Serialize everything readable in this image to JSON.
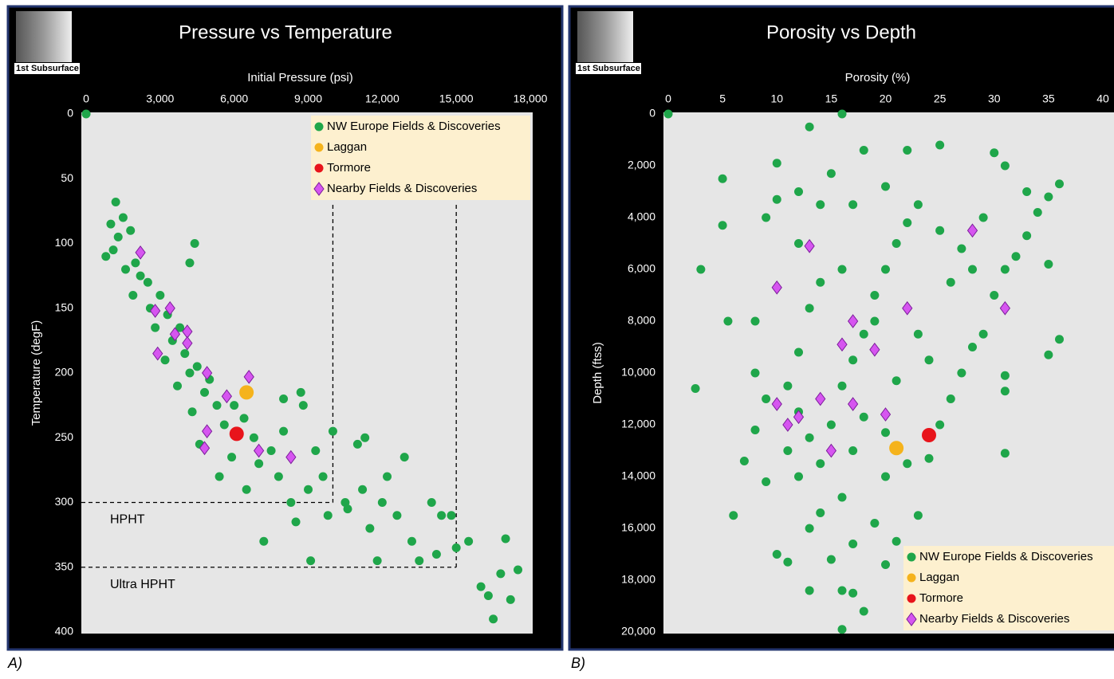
{
  "chart_data": [
    {
      "type": "scatter",
      "title": "Pressure vs Temperature",
      "logo": "1st Subsurface",
      "caption": "A)",
      "xlabel": "Initial Pressure (psi)",
      "ylabel": "Temperature (degF)",
      "xlim": [
        0,
        18000
      ],
      "ylim": [
        0,
        400
      ],
      "xticks": [
        0,
        {
          "value": 3000,
          "label": "3,000"
        },
        {
          "value": 6000,
          "label": "6,000"
        },
        {
          "value": 9000,
          "label": "9,000"
        },
        {
          "value": 12000,
          "label": "12,000"
        },
        {
          "value": 15000,
          "label": "15,000"
        },
        {
          "value": 18000,
          "label": "18,000"
        }
      ],
      "yticks": [
        0,
        50,
        100,
        150,
        200,
        250,
        300,
        350,
        400
      ],
      "legend": "upper right",
      "reference_lines": [
        {
          "label": "HPHT",
          "y": 300,
          "x": 10000
        },
        {
          "label": "Ultra HPHT",
          "y": 350,
          "x": 15000
        }
      ],
      "series": [
        {
          "name": "NW Europe Fields & Discoveries",
          "color": "#1fa64a",
          "marker": "circle",
          "x": [
            0,
            1200,
            1500,
            1000,
            1300,
            1800,
            800,
            1100,
            1600,
            2000,
            2200,
            2500,
            1900,
            2600,
            3000,
            3300,
            2800,
            3500,
            3800,
            4000,
            3200,
            4200,
            4500,
            3700,
            4800,
            5000,
            4300,
            5300,
            5600,
            4600,
            6000,
            6400,
            6800,
            5900,
            7000,
            5400,
            6500,
            7500,
            8000,
            7800,
            8300,
            8700,
            8800,
            8500,
            9000,
            9300,
            9600,
            9800,
            10000,
            10500,
            11000,
            11300,
            11200,
            11500,
            11800,
            12200,
            12600,
            12900,
            13200,
            13500,
            14000,
            14200,
            14400,
            14800,
            15000,
            15500,
            16000,
            16300,
            16500,
            16800,
            17000,
            17200,
            17500,
            7200,
            8000,
            4400,
            4200,
            10600,
            12000,
            9100
          ],
          "values": [
            0,
            68,
            80,
            85,
            95,
            90,
            110,
            105,
            120,
            115,
            125,
            130,
            140,
            150,
            140,
            155,
            165,
            175,
            165,
            185,
            190,
            200,
            195,
            210,
            215,
            205,
            230,
            225,
            240,
            255,
            225,
            235,
            250,
            265,
            270,
            280,
            290,
            260,
            245,
            280,
            300,
            215,
            225,
            315,
            290,
            260,
            280,
            310,
            245,
            300,
            255,
            250,
            290,
            320,
            345,
            280,
            310,
            265,
            330,
            345,
            300,
            340,
            310,
            310,
            335,
            330,
            365,
            372,
            390,
            355,
            328,
            375,
            352,
            330,
            220,
            100,
            115,
            305,
            300,
            345
          ]
        },
        {
          "name": "Laggan",
          "color": "#f5b31c",
          "marker": "big-circle",
          "x": [
            6500
          ],
          "values": [
            215
          ]
        },
        {
          "name": "Tormore",
          "color": "#e8141b",
          "marker": "big-circle",
          "x": [
            6100
          ],
          "values": [
            247
          ]
        },
        {
          "name": "Nearby Fields & Discoveries",
          "color": "#d655f0",
          "marker": "diamond",
          "x": [
            2200,
            2800,
            3400,
            3600,
            4100,
            4100,
            2900,
            4900,
            6600,
            5700,
            4900,
            4800,
            7000,
            8300
          ],
          "values": [
            107,
            152,
            150,
            170,
            168,
            177,
            185,
            200,
            203,
            218,
            245,
            258,
            260,
            265
          ]
        }
      ]
    },
    {
      "type": "scatter",
      "title": "Porosity vs Depth",
      "logo": "1st Subsurface",
      "caption": "B)",
      "xlabel": "Porosity (%)",
      "ylabel": "Depth (ftss)",
      "xlim": [
        0,
        40
      ],
      "ylim": [
        0,
        20000
      ],
      "xticks": [
        0,
        5,
        10,
        15,
        20,
        25,
        30,
        35,
        40
      ],
      "yticks": [
        0,
        {
          "value": 2000,
          "label": "2,000"
        },
        {
          "value": 4000,
          "label": "4,000"
        },
        {
          "value": 6000,
          "label": "6,000"
        },
        {
          "value": 8000,
          "label": "8,000"
        },
        {
          "value": 10000,
          "label": "10,000"
        },
        {
          "value": 12000,
          "label": "12,000"
        },
        {
          "value": 14000,
          "label": "14,000"
        },
        {
          "value": 16000,
          "label": "16,000"
        },
        {
          "value": 18000,
          "label": "18,000"
        },
        {
          "value": 20000,
          "label": "20,000"
        }
      ],
      "legend": "lower right",
      "series": [
        {
          "name": "NW Europe Fields & Discoveries",
          "color": "#1fa64a",
          "marker": "circle",
          "x": [
            0,
            16,
            13,
            5,
            5,
            3,
            5.5,
            2.5,
            8,
            10,
            10,
            9,
            12,
            12,
            8,
            9,
            8,
            7,
            9,
            6,
            10,
            11,
            13,
            16,
            17,
            18,
            16,
            15,
            17,
            19,
            20,
            21,
            23,
            20,
            22,
            24,
            25,
            26,
            27,
            28,
            29,
            30,
            31,
            32,
            33,
            34,
            35,
            36,
            30,
            25,
            22,
            18,
            15,
            14,
            14,
            13,
            12,
            11,
            12,
            13,
            11,
            12,
            14,
            15,
            16,
            17,
            18,
            19,
            20,
            21,
            22,
            23,
            25,
            26,
            27,
            28,
            29,
            31,
            33,
            35,
            36,
            35,
            31,
            31,
            31,
            24,
            23,
            21,
            20,
            18,
            17,
            16,
            14,
            13,
            19,
            16,
            17,
            20
          ],
          "values": [
            0,
            0,
            500,
            2500,
            4300,
            6000,
            8000,
            10600,
            8000,
            1900,
            3300,
            4000,
            3000,
            5000,
            10000,
            11000,
            12200,
            13400,
            14200,
            15500,
            17000,
            17300,
            18400,
            18400,
            18500,
            19200,
            19900,
            17200,
            16600,
            15800,
            17400,
            16500,
            15500,
            14000,
            13500,
            13300,
            12000,
            11000,
            10000,
            9000,
            8500,
            7000,
            6000,
            5500,
            4700,
            3800,
            3200,
            2700,
            1500,
            1200,
            1400,
            1400,
            2300,
            3500,
            6500,
            7500,
            9200,
            10500,
            11500,
            12500,
            13000,
            14000,
            13500,
            12000,
            10500,
            9500,
            8500,
            7000,
            6000,
            5000,
            4200,
            3500,
            4500,
            6500,
            5200,
            6000,
            4000,
            2000,
            3000,
            5800,
            8700,
            9300,
            10100,
            10700,
            13100,
            9500,
            8500,
            10300,
            12300,
            11700,
            13000,
            14800,
            15400,
            16000,
            8000,
            6000,
            3500,
            2800
          ]
        },
        {
          "name": "Laggan",
          "color": "#f5b31c",
          "marker": "big-circle",
          "x": [
            21
          ],
          "values": [
            12900
          ]
        },
        {
          "name": "Tormore",
          "color": "#e8141b",
          "marker": "big-circle",
          "x": [
            24
          ],
          "values": [
            12400
          ]
        },
        {
          "name": "Nearby Fields & Discoveries",
          "color": "#d655f0",
          "marker": "diamond",
          "x": [
            13,
            28,
            10,
            22,
            31,
            17,
            16,
            19,
            10,
            14,
            17,
            12,
            11,
            20,
            15
          ],
          "values": [
            5100,
            4500,
            6700,
            7500,
            7500,
            8000,
            8900,
            9100,
            11200,
            11000,
            11200,
            11700,
            12000,
            11600,
            13000
          ]
        }
      ]
    }
  ]
}
